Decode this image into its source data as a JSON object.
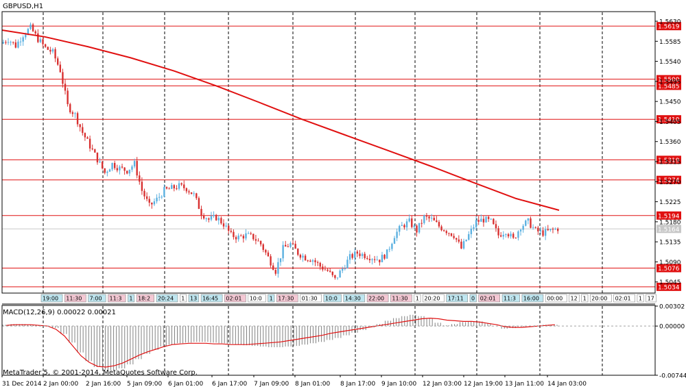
{
  "main_title": "GBPUSD,H1",
  "macd_title": "MACD(12,26,9) 0.00022 0.00021",
  "footer": "MetaTrader 5, © 2001-2014, MetaQuotes Software Corp.",
  "colors": {
    "bull": "#5ab0e0",
    "bear": "#d83030",
    "ma": "#e01010",
    "level_line": "#e01010",
    "level_label_bg": "#e01010",
    "signal": "#e01010",
    "histogram": "#808080",
    "grid": "#000000",
    "current_price_bg": "#c8c8c8"
  },
  "chart_data": [
    {
      "type": "candlestick",
      "title": "GBPUSD,H1",
      "ylim": [
        1.502,
        1.565
      ],
      "y_ticks": [
        "1.5630",
        "1.5585",
        "1.5540",
        "1.5495",
        "1.5450",
        "1.5405",
        "1.5360",
        "1.5315",
        "1.5270",
        "1.5225",
        "1.5180",
        "1.5135",
        "1.5090",
        "1.5045"
      ],
      "x_ticks": [
        "31 Dec 2014",
        "2 Jan 00:00",
        "2 Jan 16:00",
        "5 Jan 09:00",
        "6 Jan 01:00",
        "6 Jan 17:00",
        "7 Jan 09:00",
        "8 Jan 01:00",
        "8 Jan 17:00",
        "9 Jan 10:00",
        "12 Jan 03:00",
        "12 Jan 19:00",
        "13 Jan 11:00",
        "14 Jan 03:00"
      ],
      "current_price": "1.5164",
      "levels": [
        "1.5619",
        "1.5500",
        "1.5485",
        "1.5410",
        "1.5319",
        "1.5274",
        "1.5194",
        "1.5076",
        "1.5034"
      ],
      "ma": [
        1.561,
        1.5595,
        1.5573,
        1.5548,
        1.5519,
        1.5485,
        1.5448,
        1.541,
        1.5375,
        1.534,
        1.5305,
        1.5268,
        1.5232,
        1.5206
      ],
      "path": [
        1.558,
        1.559,
        1.5575,
        1.56,
        1.5615,
        1.559,
        1.557,
        1.556,
        1.552,
        1.544,
        1.542,
        1.538,
        1.535,
        1.532,
        1.529,
        1.531,
        1.53,
        1.5295,
        1.531,
        1.525,
        1.5215,
        1.523,
        1.525,
        1.5255,
        1.526,
        1.5255,
        1.524,
        1.52,
        1.5185,
        1.519,
        1.5175,
        1.515,
        1.5145,
        1.515,
        1.5145,
        1.513,
        1.51,
        1.507,
        1.512,
        1.513,
        1.511,
        1.51,
        1.5095,
        1.508,
        1.507,
        1.505,
        1.5075,
        1.51,
        1.511,
        1.5105,
        1.51,
        1.5095,
        1.511,
        1.515,
        1.517,
        1.518,
        1.516,
        1.519,
        1.5185,
        1.517,
        1.516,
        1.515,
        1.512,
        1.515,
        1.518,
        1.5185,
        1.518,
        1.515,
        1.516,
        1.514,
        1.517,
        1.518,
        1.516,
        1.5155,
        1.516,
        1.5165
      ]
    },
    {
      "type": "bar",
      "title": "MACD(12,26,9) 0.00022 0.00021",
      "ylim": [
        -0.00744,
        0.00302
      ],
      "y_ticks": [
        "0.00302",
        "0.00000",
        "-0.00744"
      ],
      "histogram": [
        0.0002,
        0.0003,
        0.0003,
        0.0002,
        0.0001,
        0.0,
        -0.0003,
        -0.0012,
        -0.0025,
        -0.004,
        -0.0053,
        -0.0062,
        -0.0066,
        -0.0067,
        -0.0064,
        -0.0058,
        -0.005,
        -0.0042,
        -0.0036,
        -0.0031,
        -0.0028,
        -0.0026,
        -0.0025,
        -0.0024,
        -0.0024,
        -0.0025,
        -0.0026,
        -0.0027,
        -0.0028,
        -0.0029,
        -0.003,
        -0.0031,
        -0.0032,
        -0.0032,
        -0.0031,
        -0.003,
        -0.0028,
        -0.0026,
        -0.0024,
        -0.0021,
        -0.0018,
        -0.0014,
        -0.001,
        -0.0006,
        -0.0002,
        0.0003,
        0.0008,
        0.0012,
        0.0015,
        0.0017,
        0.0015,
        0.0011,
        0.0005,
        0.0001,
        0.0003,
        0.0006,
        0.0007,
        0.0007,
        0.0004,
        0.0,
        -0.0004,
        -0.0003,
        -0.0001,
        0.0,
        0.0001,
        0.0002,
        0.0002
      ],
      "signal": [
        0.0001,
        0.0002,
        0.0002,
        0.0002,
        0.0001,
        0.0,
        -0.0005,
        -0.0015,
        -0.003,
        -0.0045,
        -0.0055,
        -0.0061,
        -0.0062,
        -0.006,
        -0.0056,
        -0.005,
        -0.0044,
        -0.0039,
        -0.0035,
        -0.0031,
        -0.0028,
        -0.0027,
        -0.0026,
        -0.0026,
        -0.0026,
        -0.0027,
        -0.0027,
        -0.0028,
        -0.0028,
        -0.0028,
        -0.0027,
        -0.0026,
        -0.0025,
        -0.0024,
        -0.0022,
        -0.002,
        -0.0018,
        -0.0016,
        -0.0014,
        -0.0011,
        -0.0009,
        -0.0007,
        -0.0005,
        -0.0003,
        -0.0001,
        0.0001,
        0.0003,
        0.0005,
        0.0007,
        0.0009,
        0.0011,
        0.0012,
        0.0011,
        0.0009,
        0.0008,
        0.0007,
        0.0007,
        0.0006,
        0.0004,
        0.0002,
        -0.0001,
        -0.0002,
        -0.0002,
        -0.0001,
        0.0,
        0.0001,
        0.0002
      ]
    }
  ],
  "event_labels": [
    {
      "text": "19:00",
      "kind": "bull"
    },
    {
      "text": "11:30",
      "kind": "bear"
    },
    {
      "text": "7:00",
      "kind": "bull"
    },
    {
      "text": "11:3",
      "kind": "bear"
    },
    {
      "text": "1",
      "kind": "bull"
    },
    {
      "text": "18:2",
      "kind": "bear"
    },
    {
      "text": "20:24",
      "kind": "bull"
    },
    {
      "text": "1",
      "kind": "plain"
    },
    {
      "text": "13",
      "kind": "bull"
    },
    {
      "text": "16:45",
      "kind": "bull"
    },
    {
      "text": "02:01",
      "kind": "bear"
    },
    {
      "text": "10:0",
      "kind": "plain"
    },
    {
      "text": "1",
      "kind": "bull"
    },
    {
      "text": "17:30",
      "kind": "bear"
    },
    {
      "text": "01:30",
      "kind": "plain"
    },
    {
      "text": "10:0",
      "kind": "bull"
    },
    {
      "text": "14:30",
      "kind": "bull"
    },
    {
      "text": "22:00",
      "kind": "bear"
    },
    {
      "text": "11:30",
      "kind": "bear"
    },
    {
      "text": "1",
      "kind": "plain"
    },
    {
      "text": "20:20",
      "kind": "plain"
    },
    {
      "text": "17:11",
      "kind": "bull"
    },
    {
      "text": "0",
      "kind": "bull"
    },
    {
      "text": "02:01",
      "kind": "bear"
    },
    {
      "text": "11:3",
      "kind": "bull"
    },
    {
      "text": "16:00",
      "kind": "bull"
    },
    {
      "text": "00:00",
      "kind": "plain"
    },
    {
      "text": "12",
      "kind": "plain"
    },
    {
      "text": "1",
      "kind": "plain"
    },
    {
      "text": "20:00",
      "kind": "plain"
    },
    {
      "text": "02:01",
      "kind": "plain"
    },
    {
      "text": "1",
      "kind": "plain"
    },
    {
      "text": "17",
      "kind": "plain"
    }
  ]
}
